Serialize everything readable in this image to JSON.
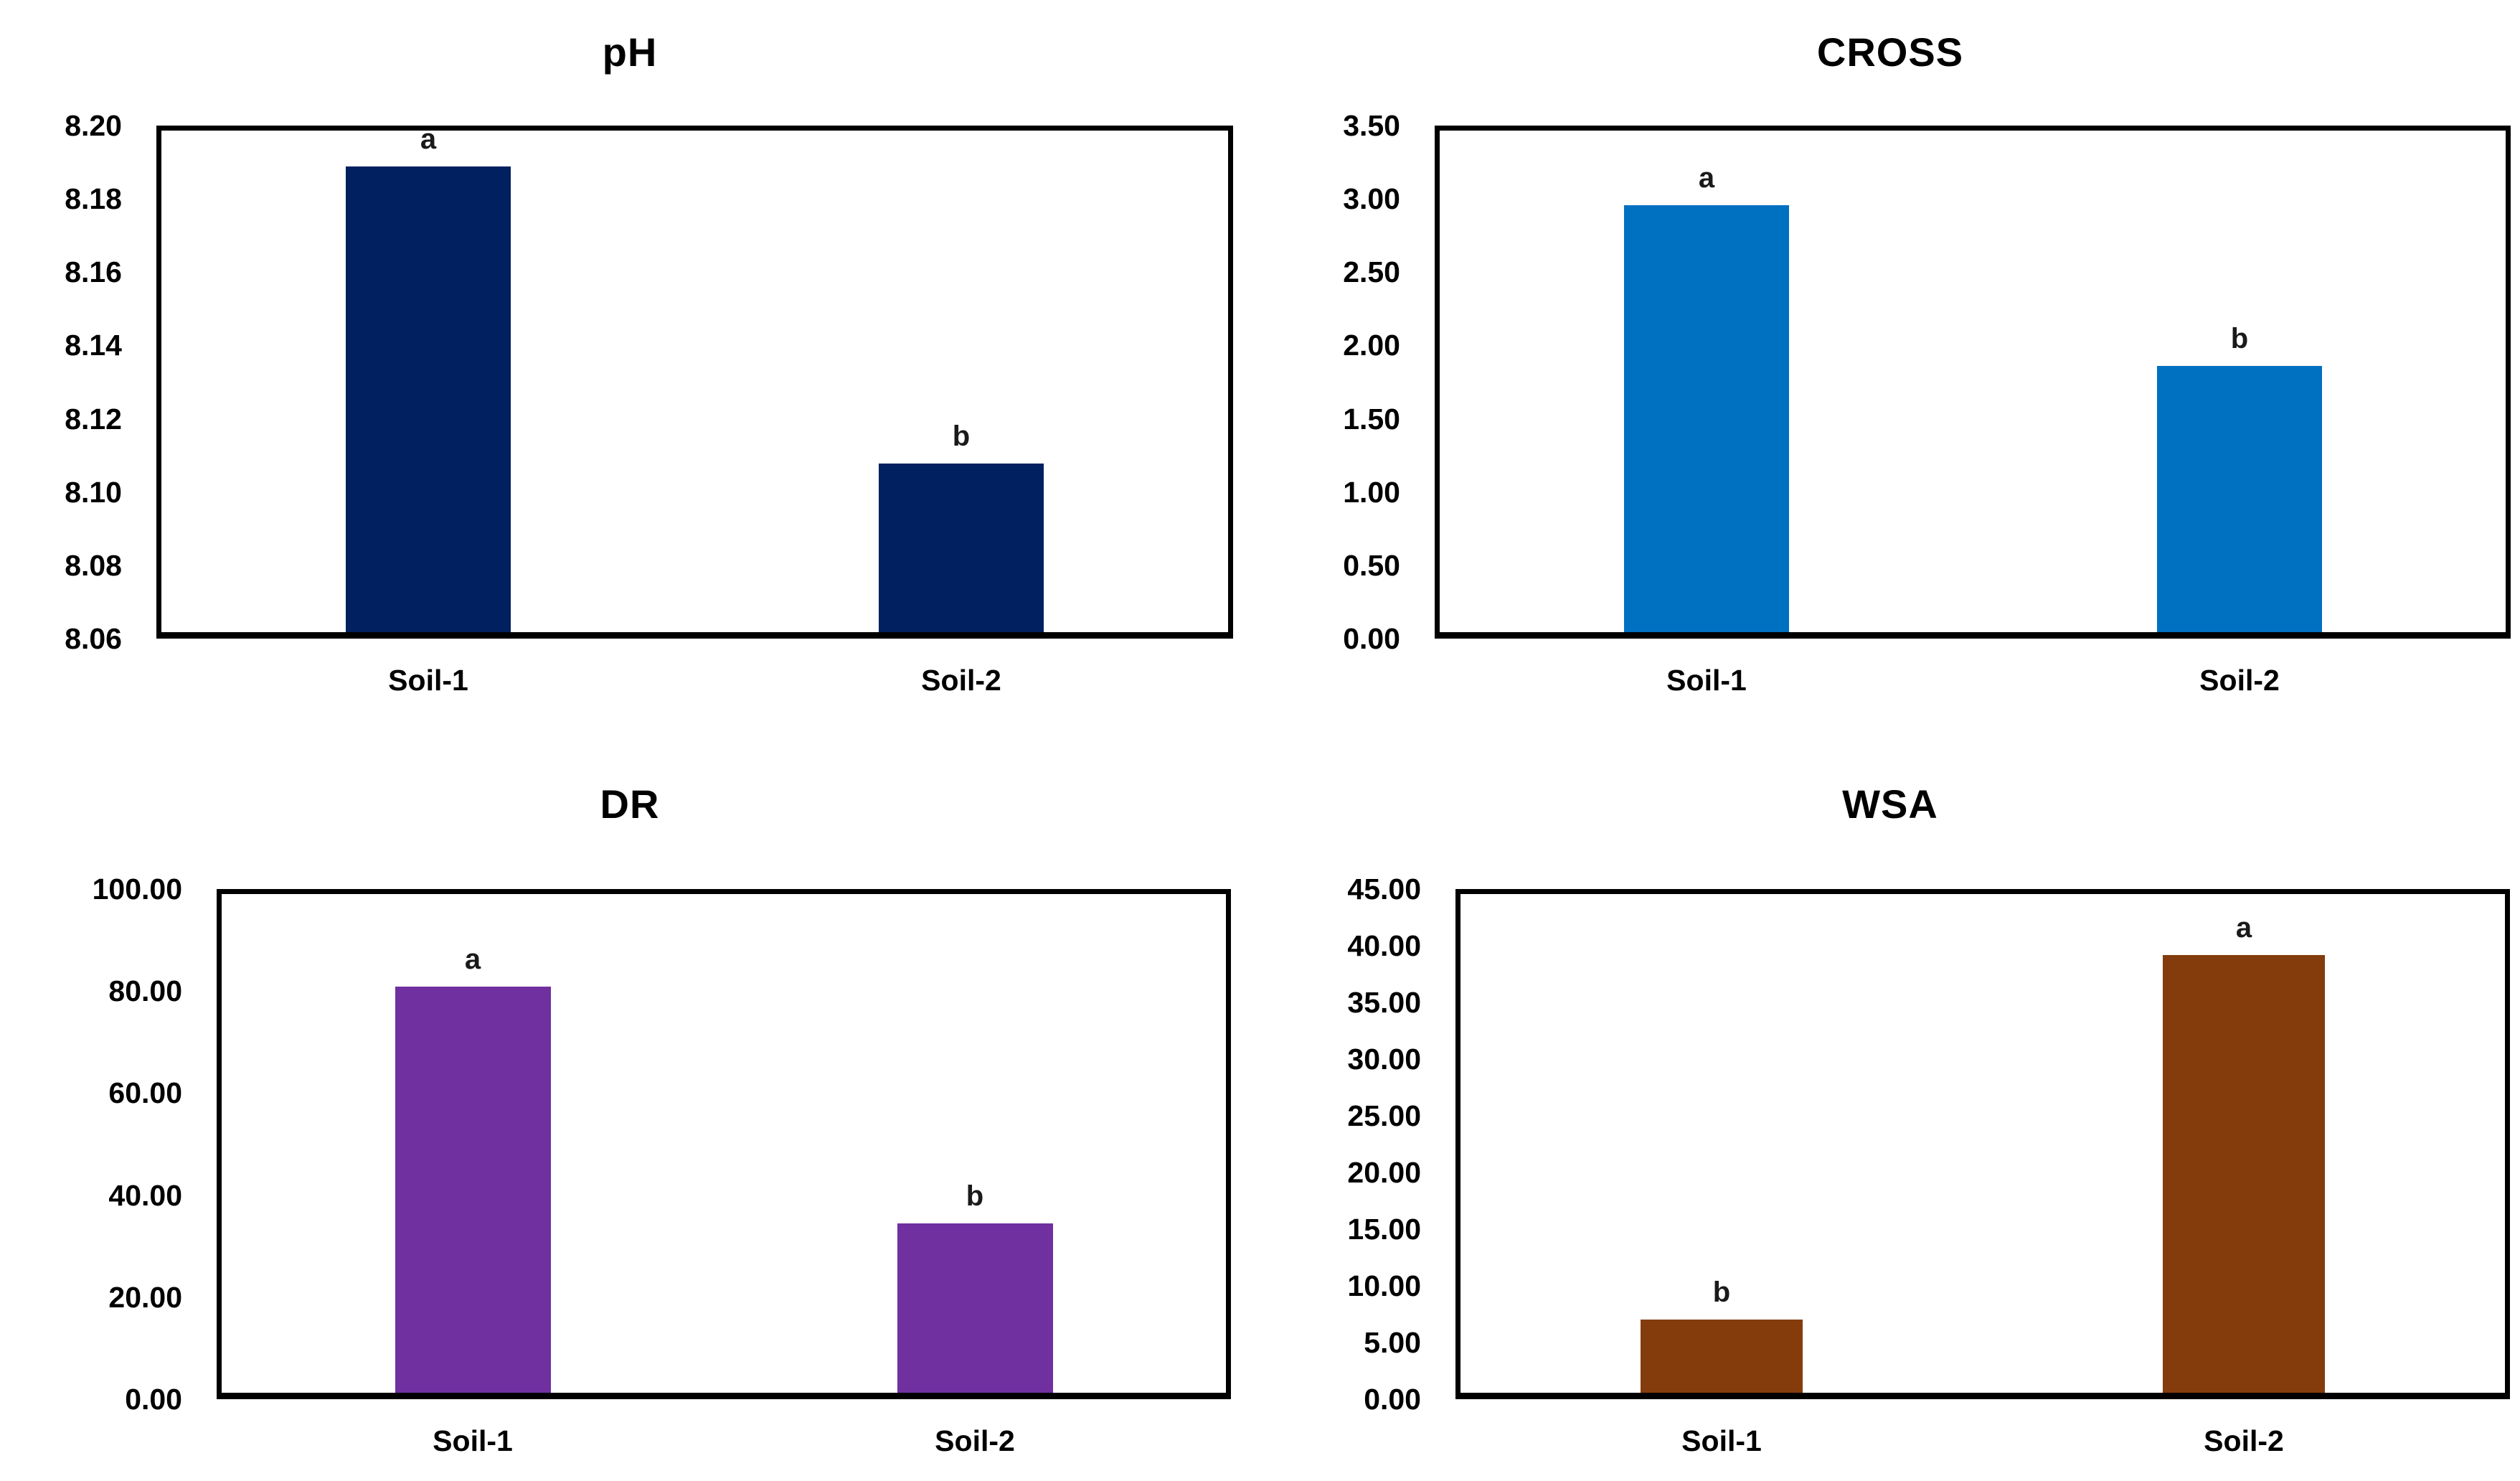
{
  "page": {
    "background": "#ffffff",
    "text_color": "#000000"
  },
  "chart_data": [
    {
      "type": "bar",
      "title": "pH",
      "categories": [
        "Soil-1",
        "Soil-2"
      ],
      "values": [
        8.19,
        8.107
      ],
      "bar_labels": [
        "a",
        "b"
      ],
      "ylim": [
        8.06,
        8.2
      ],
      "ytick_step": 0.02,
      "yticks": [
        "8.20",
        "8.18",
        "8.16",
        "8.14",
        "8.12",
        "8.10",
        "8.08",
        "8.06"
      ],
      "bar_color": "#002060",
      "grid": false,
      "legend": false
    },
    {
      "type": "bar",
      "title": "CROSS",
      "categories": [
        "Soil-1",
        "Soil-2"
      ],
      "values": [
        2.98,
        1.86
      ],
      "bar_labels": [
        "a",
        "b"
      ],
      "ylim": [
        0.0,
        3.5
      ],
      "ytick_step": 0.5,
      "yticks": [
        "3.50",
        "3.00",
        "2.50",
        "2.00",
        "1.50",
        "1.00",
        "0.50",
        "0.00"
      ],
      "bar_color": "#0070C0",
      "grid": false,
      "legend": false
    },
    {
      "type": "bar",
      "title": "DR",
      "categories": [
        "Soil-1",
        "Soil-2"
      ],
      "values": [
        81.5,
        34.0
      ],
      "bar_labels": [
        "a",
        "b"
      ],
      "ylim": [
        0.0,
        100.0
      ],
      "ytick_step": 20.0,
      "yticks": [
        "100.00",
        "80.00",
        "60.00",
        "40.00",
        "20.00",
        "0.00"
      ],
      "bar_color": "#7030A0",
      "grid": false,
      "legend": false
    },
    {
      "type": "bar",
      "title": "WSA",
      "categories": [
        "Soil-1",
        "Soil-2"
      ],
      "values": [
        6.6,
        39.5
      ],
      "bar_labels": [
        "b",
        "a"
      ],
      "ylim": [
        0.0,
        45.0
      ],
      "ytick_step": 5.0,
      "yticks": [
        "45.00",
        "40.00",
        "35.00",
        "30.00",
        "25.00",
        "20.00",
        "15.00",
        "10.00",
        "5.00",
        "0.00"
      ],
      "bar_color": "#843C0C",
      "grid": false,
      "legend": false
    }
  ]
}
